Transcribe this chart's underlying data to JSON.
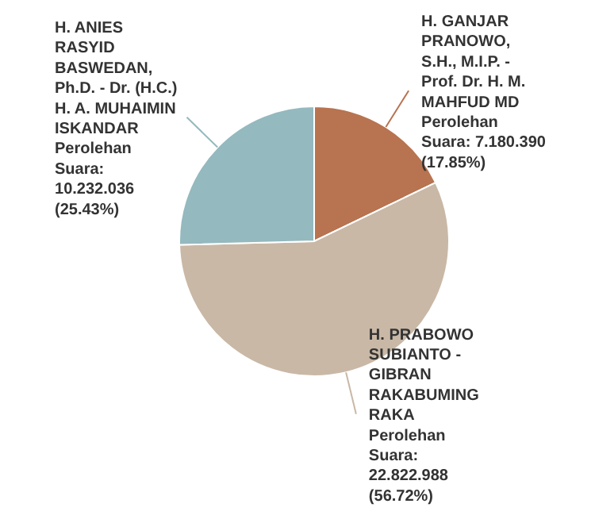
{
  "chart_data": {
    "type": "pie",
    "categories": [
      "H. GANJAR PRANOWO, S.H., M.I.P. - Prof. Dr. H. M. MAHFUD MD",
      "H. PRABOWO SUBIANTO - GIBRAN RAKABUMING RAKA",
      "H. ANIES RASYID BASWEDAN, Ph.D. - Dr. (H.C.) H. A. MUHAIMIN ISKANDAR"
    ],
    "values": [
      7180390,
      22822988,
      10232036
    ],
    "colors": [
      "#b87350",
      "#c9b8a6",
      "#94b9bf"
    ],
    "value_labels": [
      "Perolehan Suara: 7.180.390 (17.85%)",
      "Perolehan Suara: 22.822.988 (56.72%)",
      "Perolehan Suara: 10.232.036 (25.43%)"
    ]
  }
}
